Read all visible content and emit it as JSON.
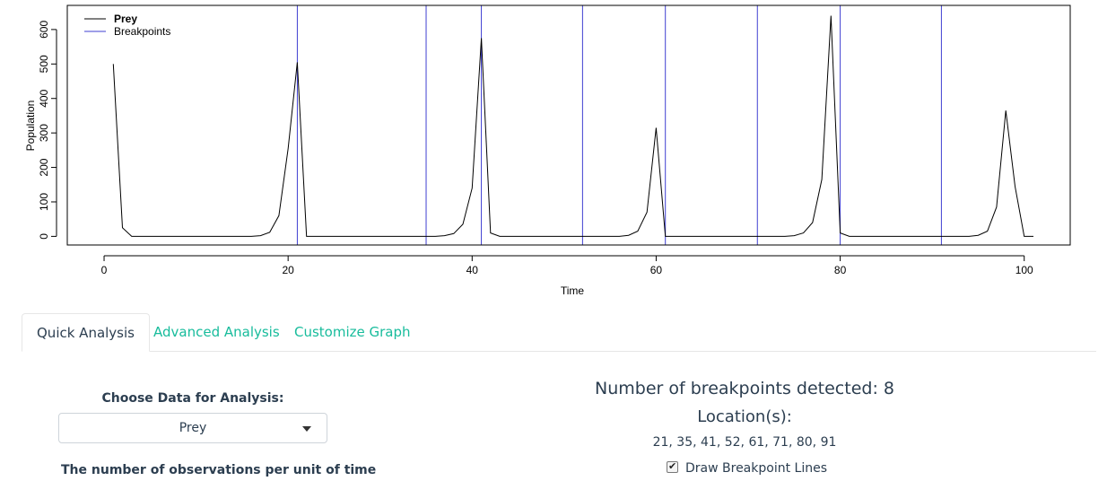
{
  "chart_data": {
    "type": "line",
    "title": "",
    "xlabel": "Time",
    "ylabel": "Population",
    "xlim": [
      -4,
      105
    ],
    "ylim": [
      -25,
      670
    ],
    "xticks": [
      "0",
      "20",
      "40",
      "60",
      "80",
      "100"
    ],
    "yticks": [
      "0",
      "100",
      "200",
      "300",
      "400",
      "500",
      "600"
    ],
    "legend": {
      "position": "top-left",
      "entries": [
        "Prey",
        "Breakpoints"
      ]
    },
    "series": [
      {
        "name": "Prey",
        "color": "#000000",
        "x": [
          1,
          2,
          3,
          4,
          5,
          6,
          7,
          8,
          9,
          10,
          11,
          12,
          13,
          14,
          15,
          16,
          17,
          18,
          19,
          20,
          21,
          22,
          23,
          24,
          25,
          26,
          27,
          28,
          29,
          30,
          31,
          32,
          33,
          34,
          35,
          36,
          37,
          38,
          39,
          40,
          41,
          42,
          43,
          44,
          45,
          46,
          47,
          48,
          49,
          50,
          51,
          52,
          53,
          54,
          55,
          56,
          57,
          58,
          59,
          60,
          61,
          62,
          63,
          64,
          65,
          66,
          67,
          68,
          69,
          70,
          71,
          72,
          73,
          74,
          75,
          76,
          77,
          78,
          79,
          80,
          81,
          82,
          83,
          84,
          85,
          86,
          87,
          88,
          89,
          90,
          91,
          92,
          93,
          94,
          95,
          96,
          97,
          98,
          99,
          100,
          101
        ],
        "y": [
          500,
          25,
          0,
          0,
          0,
          0,
          0,
          0,
          0,
          0,
          0,
          0,
          0,
          0,
          0,
          0,
          2,
          12,
          60,
          255,
          505,
          0,
          0,
          0,
          0,
          0,
          0,
          0,
          0,
          0,
          0,
          0,
          0,
          0,
          0,
          0,
          2,
          8,
          35,
          140,
          575,
          10,
          0,
          0,
          0,
          0,
          0,
          0,
          0,
          0,
          0,
          0,
          0,
          0,
          0,
          0,
          3,
          15,
          70,
          315,
          0,
          0,
          0,
          0,
          0,
          0,
          0,
          0,
          0,
          0,
          0,
          0,
          0,
          0,
          2,
          10,
          40,
          165,
          640,
          10,
          0,
          0,
          0,
          0,
          0,
          0,
          0,
          0,
          0,
          0,
          0,
          0,
          0,
          0,
          3,
          15,
          85,
          365,
          145,
          0,
          0
        ]
      }
    ],
    "breakpoints": {
      "name": "Breakpoints",
      "color": "#3f3fd1",
      "x": [
        21,
        35,
        41,
        52,
        61,
        71,
        80,
        91
      ]
    }
  },
  "tabs": [
    {
      "label": "Quick Analysis"
    },
    {
      "label": "Advanced Analysis"
    },
    {
      "label": "Customize Graph"
    }
  ],
  "left": {
    "choose_label": "Choose Data for Analysis:",
    "select_value": "Prey",
    "obs_label": "The number of observations per unit of time"
  },
  "right": {
    "count_text": "Number of breakpoints detected: 8",
    "location_heading": "Location(s):",
    "locations_text": "21, 35, 41, 52, 61, 71, 80, 91",
    "checkbox_label": "Draw Breakpoint Lines",
    "checkbox_checked": true
  }
}
